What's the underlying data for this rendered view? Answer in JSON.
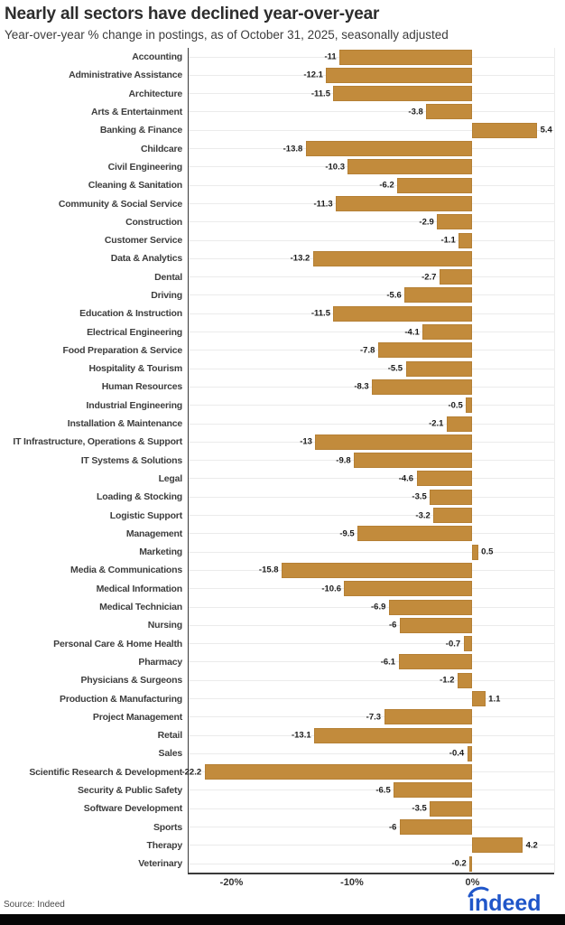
{
  "header": {
    "title": "Nearly all sectors have declined year-over-year",
    "subtitle": "Year-over-year % change in postings, as of October 31, 2025, seasonally adjusted"
  },
  "chart_data": {
    "type": "bar",
    "orientation": "horizontal",
    "title": "Nearly all sectors have declined year-over-year",
    "subtitle": "Year-over-year % change in postings, as of October 31, 2025, seasonally adjusted",
    "unit": "%",
    "xlim": [
      -23.5,
      6.8
    ],
    "grid": "horizontal-row-lines",
    "bar_color": "#c28b3c",
    "categories": [
      "Accounting",
      "Administrative Assistance",
      "Architecture",
      "Arts & Entertainment",
      "Banking & Finance",
      "Childcare",
      "Civil Engineering",
      "Cleaning & Sanitation",
      "Community & Social Service",
      "Construction",
      "Customer Service",
      "Data & Analytics",
      "Dental",
      "Driving",
      "Education & Instruction",
      "Electrical Engineering",
      "Food Preparation & Service",
      "Hospitality & Tourism",
      "Human Resources",
      "Industrial Engineering",
      "Installation & Maintenance",
      "IT Infrastructure, Operations & Support",
      "IT Systems & Solutions",
      "Legal",
      "Loading & Stocking",
      "Logistic Support",
      "Management",
      "Marketing",
      "Media & Communications",
      "Medical Information",
      "Medical Technician",
      "Nursing",
      "Personal Care & Home Health",
      "Pharmacy",
      "Physicians & Surgeons",
      "Production & Manufacturing",
      "Project Management",
      "Retail",
      "Sales",
      "Scientific Research & Development",
      "Security & Public Safety",
      "Software Development",
      "Sports",
      "Therapy",
      "Veterinary"
    ],
    "values": [
      -11,
      -12.1,
      -11.5,
      -3.8,
      5.4,
      -13.8,
      -10.3,
      -6.2,
      -11.3,
      -2.9,
      -1.1,
      -13.2,
      -2.7,
      -5.6,
      -11.5,
      -4.1,
      -7.8,
      -5.5,
      -8.3,
      -0.5,
      -2.1,
      -13,
      -9.8,
      -4.6,
      -3.5,
      -3.2,
      -9.5,
      0.5,
      -15.8,
      -10.6,
      -6.9,
      -6,
      -0.7,
      -6.1,
      -1.2,
      1.1,
      -7.3,
      -13.1,
      -0.4,
      -22.2,
      -6.5,
      -3.5,
      -6,
      4.2,
      -0.2
    ],
    "x_ticks": [
      {
        "label": "-20%",
        "value": -20
      },
      {
        "label": "-10%",
        "value": -10
      },
      {
        "label": "0%",
        "value": 0
      }
    ]
  },
  "footer": {
    "source": "Source: Indeed",
    "logo_text": "indeed",
    "logo_color": "#2056c9"
  }
}
